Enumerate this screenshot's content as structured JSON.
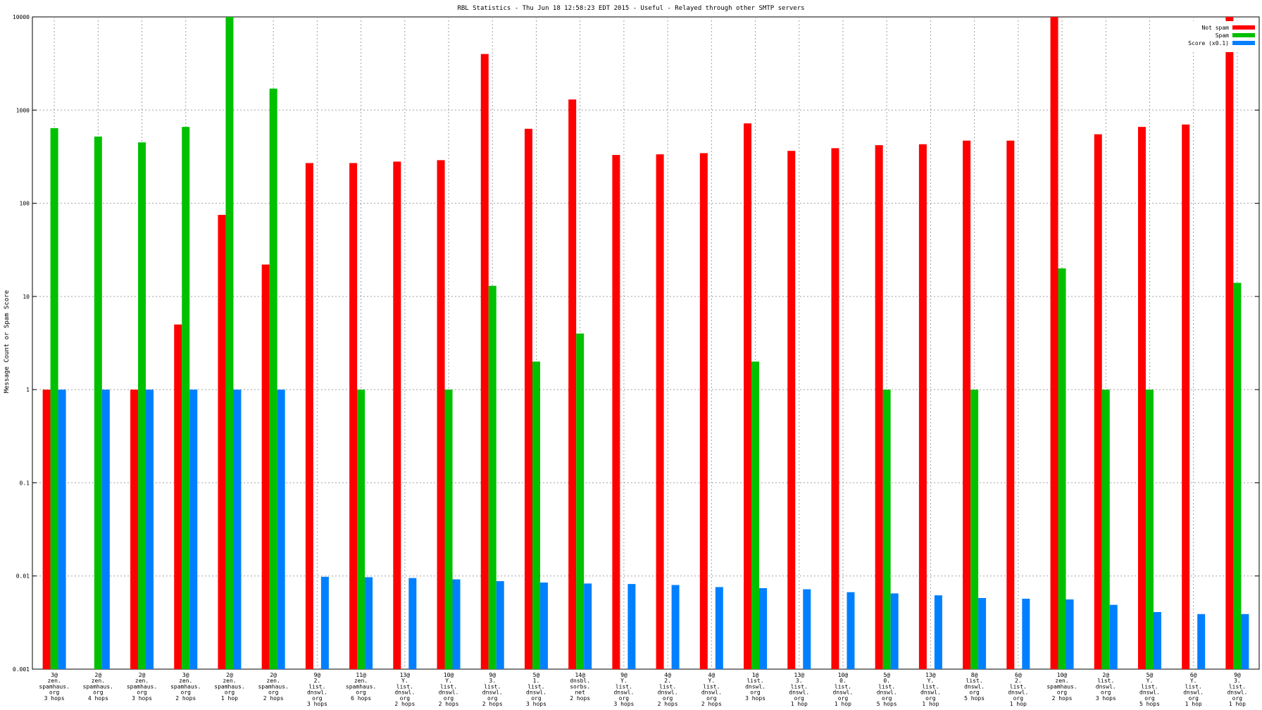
{
  "chart_data": {
    "type": "bar",
    "title": "RBL Statistics - Thu Jun 18 12:58:23 EDT 2015 - Useful - Relayed through other SMTP servers",
    "xlabel": "",
    "ylabel": "Message Count or Spam Score",
    "yscale": "log",
    "ylim": [
      0.001,
      10000
    ],
    "yticks": [
      "0.001",
      "0.01",
      "0.1",
      "1",
      "10",
      "100",
      "1000",
      "10000"
    ],
    "grid": true,
    "legend_position": "top-right",
    "categories": [
      "3@ zen. spamhaus. org 3 hops",
      "2@ zen. spamhaus. org 4 hops",
      "2@ zen. spamhaus. org 3 hops",
      "3@ zen. spamhaus. org 2 hops",
      "2@ zen. spamhaus. org 1 hop",
      "2@ zen. spamhaus. org 2 hops",
      "9@ 2. list. dnswl. org 3 hops",
      "11@ zen. spamhaus. org 6 hops",
      "13@ Y. list. dnswl. org 2 hops",
      "10@ Y. list. dnswl. org 2 hops",
      "9@ 3. list. dnswl. org 2 hops",
      "5@ 1. list. dnswl. org 3 hops",
      "14@ dnsbl. sorbs. net 2 hops",
      "9@ Y. list. dnswl. org 3 hops",
      "4@ 2. list. dnswl. org 2 hops",
      "4@ Y. list. dnswl. org 2 hops",
      "1@ list. dnswl. org 3 hops",
      "13@ 3. list. dnswl. org 1 hop",
      "10@ 0. list. dnswl. org 1 hop",
      "5@ 0. list. dnswl. org 5 hops",
      "13@ Y. list. dnswl. org 1 hop",
      "8@ list. dnswl. org 5 hops",
      "6@ 2. list. dnswl. org 1 hop",
      "10@ zen. spamhaus. org 2 hops",
      "2@ list. dnswl. org 3 hops",
      "5@ Y. list. dnswl. org 5 hops",
      "6@ Y. list. dnswl. org 1 hop",
      "9@ 3. list. dnswl. org 1 hop"
    ],
    "series": [
      {
        "name": "Not spam",
        "color": "#ff0000",
        "values": [
          1,
          null,
          1,
          5,
          75,
          22,
          270,
          270,
          280,
          290,
          4000,
          630,
          1300,
          330,
          335,
          345,
          720,
          365,
          390,
          420,
          430,
          470,
          470,
          10000,
          550,
          660,
          700,
          10000
        ]
      },
      {
        "name": "Spam",
        "color": "#00c000",
        "values": [
          640,
          520,
          450,
          660,
          10000,
          1700,
          null,
          1,
          null,
          1,
          13,
          2,
          4,
          null,
          null,
          null,
          2,
          null,
          null,
          1,
          null,
          1,
          null,
          20,
          1,
          1,
          null,
          14
        ]
      },
      {
        "name": "Score (x0.1)",
        "color": "#0080ff",
        "values": [
          1,
          1,
          1,
          1,
          1,
          1,
          0.0098,
          0.0097,
          0.0095,
          0.0092,
          0.0088,
          0.0085,
          0.0083,
          0.0082,
          0.008,
          0.0076,
          0.0074,
          0.0072,
          0.0067,
          0.0065,
          0.0062,
          0.0058,
          0.0057,
          0.0056,
          0.0049,
          0.0041,
          0.0039,
          0.0039
        ]
      }
    ]
  }
}
